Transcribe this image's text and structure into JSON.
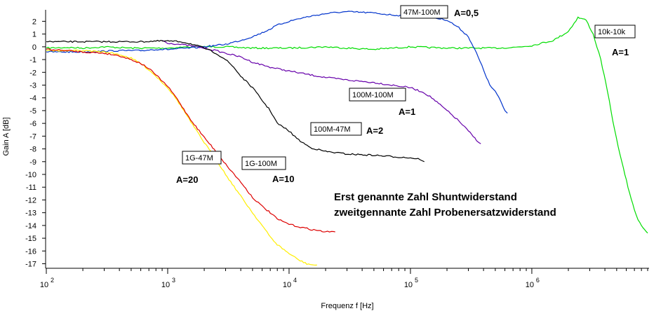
{
  "chart_data": {
    "type": "line",
    "xscale": "log",
    "xlim": [
      100,
      9000000
    ],
    "ylim": [
      -17.3,
      2.9
    ],
    "xlabel": "Frequenz f [Hz]",
    "ylabel": "Gain A [dB]",
    "x_ticks": [
      {
        "value": 100,
        "base": "10",
        "exp": "2"
      },
      {
        "value": 1000,
        "base": "10",
        "exp": "3"
      },
      {
        "value": 10000,
        "base": "10",
        "exp": "4"
      },
      {
        "value": 100000,
        "base": "10",
        "exp": "5"
      },
      {
        "value": 1000000,
        "base": "10",
        "exp": "6"
      }
    ],
    "y_ticks": [
      "2",
      "1",
      "0",
      "-1",
      "-2",
      "-3",
      "-4",
      "-5",
      "-6",
      "-7",
      "-8",
      "-9",
      "-10",
      "-11",
      "-12",
      "-13",
      "-14",
      "-15",
      "-16",
      "-17"
    ],
    "grid": false,
    "series": [
      {
        "name": "10k-10k",
        "gain": "A=1",
        "color": "#00dd00",
        "x": [
          100,
          150,
          200,
          300,
          500,
          1000,
          1500,
          2000,
          3000,
          5000,
          10000,
          20000,
          30000,
          50000,
          100000,
          200000,
          300000,
          500000,
          700000,
          1000000,
          1500000,
          2000000,
          2400000,
          2800000,
          3200000,
          3700000,
          4200000,
          4800000,
          5500000,
          6200000,
          7000000,
          7500000,
          8000000,
          8500000,
          9000000
        ],
        "y": [
          -0.1,
          -0.05,
          -0.1,
          0,
          -0.1,
          -0.1,
          0,
          0,
          0,
          -0.1,
          -0.1,
          0,
          -0.1,
          -0.2,
          0,
          -0.1,
          -0.1,
          -0.1,
          -0.05,
          0.1,
          0.5,
          1.2,
          2.3,
          2.1,
          1.0,
          -1.0,
          -3.5,
          -6.5,
          -9,
          -11,
          -12.8,
          -13.5,
          -14,
          -14.3,
          -14.6
        ]
      },
      {
        "name": "47M-100M",
        "gain": "A=0,5",
        "color": "#0033cc",
        "x": [
          100,
          200,
          400,
          600,
          800,
          1000,
          1500,
          2000,
          3000,
          4000,
          5000,
          6000,
          7000,
          8000,
          10000,
          12000,
          15000,
          20000,
          25000,
          30000,
          40000,
          50000,
          70000,
          100000,
          150000,
          200000,
          250000,
          300000,
          350000,
          400000,
          450000,
          500000,
          550000,
          600000,
          630000
        ],
        "y": [
          -0.4,
          -0.4,
          -0.3,
          -0.3,
          -0.2,
          -0.2,
          -0.1,
          0,
          0.2,
          0.5,
          0.8,
          1.1,
          1.4,
          1.7,
          2.0,
          2.2,
          2.4,
          2.6,
          2.7,
          2.75,
          2.7,
          2.65,
          2.5,
          2.4,
          2.3,
          2.1,
          1.5,
          0.8,
          -0.5,
          -1.8,
          -3,
          -3.5,
          -4.2,
          -5,
          -5.2
        ]
      },
      {
        "name": "100M-100M",
        "gain": "A=1",
        "color": "#6600aa",
        "x": [
          900,
          1000,
          1500,
          2000,
          2500,
          3000,
          4000,
          5000,
          7000,
          10000,
          15000,
          20000,
          30000,
          50000,
          70000,
          100000,
          130000,
          150000,
          200000,
          250000,
          300000,
          350000,
          380000
        ],
        "y": [
          0.5,
          0.3,
          0.1,
          -0.1,
          -0.3,
          -0.5,
          -0.8,
          -1.2,
          -1.6,
          -1.9,
          -2.2,
          -2.4,
          -2.6,
          -2.8,
          -3.0,
          -3.2,
          -3.6,
          -4.0,
          -5.0,
          -5.8,
          -6.6,
          -7.3,
          -7.6
        ]
      },
      {
        "name": "100M-47M",
        "gain": "A=2",
        "color": "#000000",
        "x": [
          100,
          200,
          400,
          600,
          800,
          1000,
          1300,
          1600,
          2000,
          2500,
          3000,
          3500,
          4000,
          5000,
          6000,
          7000,
          8000,
          10000,
          12000,
          15000,
          20000,
          30000,
          50000,
          70000,
          100000,
          120000,
          130000
        ],
        "y": [
          0.4,
          0.4,
          0.4,
          0.4,
          0.45,
          0.45,
          0.4,
          0.2,
          -0.1,
          -0.5,
          -1,
          -1.6,
          -2.3,
          -3.2,
          -4.2,
          -5,
          -6,
          -6.6,
          -7.3,
          -7.9,
          -8.2,
          -8.4,
          -8.5,
          -8.6,
          -8.7,
          -8.8,
          -9.0
        ]
      },
      {
        "name": "1G-47M",
        "gain": "A=20",
        "color": "#ffee00",
        "x": [
          100,
          150,
          200,
          300,
          400,
          500,
          600,
          700,
          800,
          1000,
          1200,
          1400,
          1600,
          2000,
          2500,
          3000,
          4000,
          5000,
          6000,
          7000,
          8000,
          10000,
          12000,
          14000,
          16000,
          17000
        ],
        "y": [
          -0.3,
          -0.3,
          -0.3,
          -0.4,
          -0.6,
          -0.9,
          -1.3,
          -1.8,
          -2.3,
          -3.2,
          -4.2,
          -5.2,
          -6.1,
          -7.5,
          -8.8,
          -10,
          -11.7,
          -13,
          -14,
          -14.9,
          -15.5,
          -16.2,
          -16.7,
          -17,
          -17.1,
          -17.1
        ]
      },
      {
        "name": "1G-100M",
        "gain": "A=10",
        "color": "#dd0000",
        "x": [
          100,
          150,
          200,
          300,
          400,
          500,
          600,
          700,
          800,
          1000,
          1200,
          1400,
          1600,
          2000,
          2500,
          3000,
          4000,
          5000,
          6000,
          7000,
          8000,
          10000,
          12000,
          15000,
          20000,
          24000
        ],
        "y": [
          -0.2,
          -0.3,
          -0.4,
          -0.5,
          -0.7,
          -1.0,
          -1.3,
          -1.7,
          -2.2,
          -3.1,
          -4.1,
          -5.1,
          -5.9,
          -7.1,
          -8.2,
          -9.2,
          -10.6,
          -11.8,
          -12.5,
          -13,
          -13.5,
          -13.9,
          -14.1,
          -14.3,
          -14.5,
          -14.5
        ]
      }
    ],
    "labels": {
      "l_47m100m": "47M-100M",
      "a_47m100m": "A=0,5",
      "l_10k10k": "10k-10k",
      "a_10k10k": "A=1",
      "l_100m100m": "100M-100M",
      "a_100m100m": "A=1",
      "l_100m47m": "100M-47M",
      "a_100m47m": "A=2",
      "l_1g47m": "1G-47M",
      "a_1g47m": "A=20",
      "l_1g100m": "1G-100M",
      "a_1g100m": "A=10"
    },
    "annotations": [
      "Erst genannte Zahl Shuntwiderstand",
      "zweitgennante Zahl Probenersatzwiderstand"
    ]
  }
}
